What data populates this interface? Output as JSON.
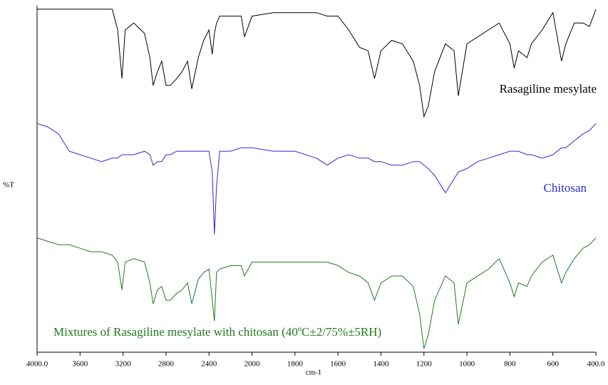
{
  "chart_data": {
    "type": "line",
    "x_label": "cm-1",
    "y_label": "%T",
    "x": [
      4000,
      3900,
      3800,
      3700,
      3600,
      3500,
      3400,
      3300,
      3250,
      3210,
      3180,
      3100,
      3000,
      2950,
      2920,
      2880,
      2840,
      2800,
      2760,
      2700,
      2650,
      2600,
      2560,
      2500,
      2450,
      2400,
      2370,
      2350,
      2330,
      2300,
      2200,
      2100,
      2070,
      2000,
      1900,
      1800,
      1700,
      1650,
      1600,
      1550,
      1500,
      1460,
      1430,
      1400,
      1350,
      1300,
      1250,
      1220,
      1200,
      1180,
      1150,
      1100,
      1060,
      1040,
      1000,
      950,
      900,
      850,
      800,
      780,
      760,
      720,
      700,
      650,
      600,
      560,
      540,
      500,
      460,
      430,
      400
    ],
    "xlim": [
      4000,
      400
    ],
    "xticks": [
      {
        "value": 4000,
        "label": "4000.0"
      },
      3600,
      3200,
      2800,
      2400,
      2000,
      1800,
      1600,
      1400,
      1200,
      1000,
      800,
      600,
      {
        "value": 400,
        "label": "400.0"
      }
    ],
    "ylim": [
      0,
      100
    ],
    "series": [
      {
        "name": "Rasagiline mesylate",
        "color": "#000000",
        "values": [
          99,
          99,
          99,
          99,
          99,
          99,
          99,
          99,
          93,
          79,
          93,
          95,
          92,
          85,
          77,
          81,
          84,
          77,
          77,
          79,
          81,
          84,
          76,
          85,
          90,
          93,
          86,
          92,
          95,
          97,
          97,
          97,
          91,
          97,
          98,
          98,
          98,
          97,
          97,
          93,
          88,
          87,
          79,
          87,
          90,
          89,
          84,
          77,
          68,
          71,
          81,
          89,
          87,
          74,
          89,
          91,
          93,
          95,
          89,
          82,
          87,
          85,
          89,
          93,
          98,
          84,
          89,
          95,
          95,
          94,
          99
        ]
      },
      {
        "name": "Chitosan",
        "color": "#2b2bd6",
        "values": [
          66,
          65,
          63,
          58,
          57,
          56,
          55,
          56,
          56,
          57,
          57,
          57,
          58,
          57,
          54,
          55,
          55,
          57,
          57,
          58,
          58,
          58,
          58,
          58,
          58,
          58,
          52,
          34,
          48,
          58,
          58,
          59,
          59,
          59,
          58,
          58,
          56,
          54,
          56,
          57,
          56,
          56,
          55,
          55,
          54,
          54,
          55,
          55,
          54,
          53,
          51,
          46,
          50,
          52,
          53,
          55,
          56,
          57,
          58,
          58,
          58,
          57,
          57,
          56,
          57,
          59,
          59,
          61,
          63,
          64,
          66
        ]
      },
      {
        "name": "Mixtures of Rasagiline mesylate with chitosan (40ºC±2/75%±5RH)",
        "color": "#1f7a1f",
        "values": [
          33,
          32,
          31,
          31,
          30,
          29,
          29,
          28,
          26,
          18,
          26,
          27,
          26,
          20,
          14,
          18,
          19,
          15,
          15,
          17,
          18,
          20,
          14,
          21,
          23,
          24,
          15,
          9,
          23,
          24,
          25,
          25,
          22,
          26,
          26,
          26,
          26,
          26,
          25,
          23,
          22,
          20,
          15,
          20,
          22,
          22,
          19,
          11,
          1,
          5,
          15,
          22,
          20,
          8,
          20,
          22,
          24,
          27,
          20,
          16,
          20,
          19,
          22,
          26,
          28,
          20,
          23,
          27,
          30,
          31,
          33
        ]
      }
    ]
  }
}
